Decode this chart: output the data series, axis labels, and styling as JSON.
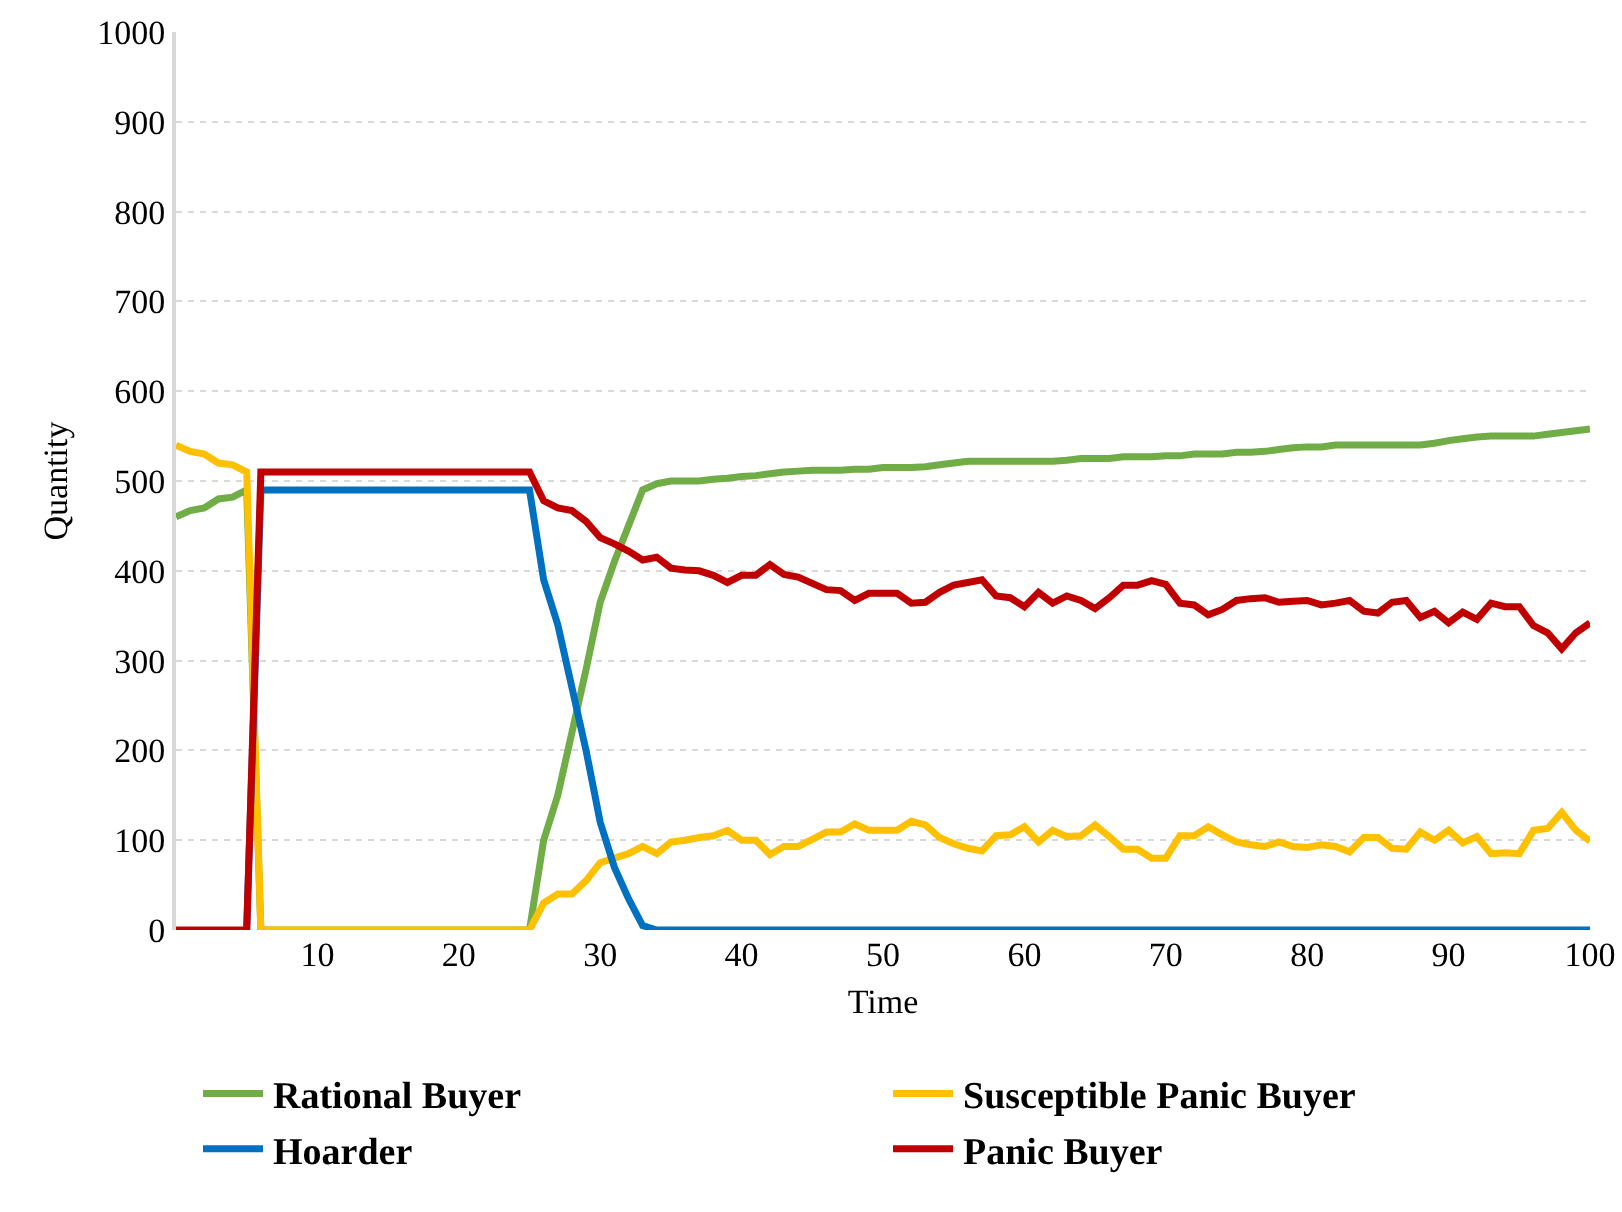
{
  "chart_data": {
    "type": "line",
    "xlabel": "Time",
    "ylabel": "Quantity",
    "x": [
      0,
      1,
      2,
      3,
      4,
      5,
      6,
      7,
      8,
      9,
      10,
      11,
      12,
      13,
      14,
      15,
      16,
      17,
      18,
      19,
      20,
      21,
      22,
      23,
      24,
      25,
      26,
      27,
      28,
      29,
      30,
      31,
      32,
      33,
      34,
      35,
      36,
      37,
      38,
      39,
      40,
      41,
      42,
      43,
      44,
      45,
      46,
      47,
      48,
      49,
      50,
      51,
      52,
      53,
      54,
      55,
      56,
      57,
      58,
      59,
      60,
      61,
      62,
      63,
      64,
      65,
      66,
      67,
      68,
      69,
      70,
      71,
      72,
      73,
      74,
      75,
      76,
      77,
      78,
      79,
      80,
      81,
      82,
      83,
      84,
      85,
      86,
      87,
      88,
      89,
      90,
      91,
      92,
      93,
      94,
      95,
      96,
      97,
      98,
      99,
      100
    ],
    "series": [
      {
        "name": "Rational Buyer",
        "color": "#70ad47",
        "values": [
          460,
          467,
          470,
          480,
          482,
          490,
          0,
          0,
          0,
          0,
          0,
          0,
          0,
          0,
          0,
          0,
          0,
          0,
          0,
          0,
          0,
          0,
          0,
          0,
          0,
          0,
          100,
          150,
          220,
          290,
          365,
          410,
          450,
          490,
          497,
          500,
          500,
          500,
          502,
          503,
          505,
          506,
          508,
          510,
          511,
          512,
          512,
          512,
          513,
          513,
          515,
          515,
          515,
          516,
          518,
          520,
          522,
          522,
          522,
          522,
          522,
          522,
          522,
          523,
          525,
          525,
          525,
          527,
          527,
          527,
          528,
          528,
          530,
          530,
          530,
          532,
          532,
          533,
          535,
          537,
          538,
          538,
          540,
          540,
          540,
          540,
          540,
          540,
          540,
          542,
          545,
          547,
          549,
          550,
          550,
          550,
          550,
          552,
          554,
          556,
          558
        ]
      },
      {
        "name": "Susceptible Panic Buyer",
        "color": "#ffc000",
        "values": [
          540,
          533,
          530,
          520,
          518,
          510,
          0,
          0,
          0,
          0,
          0,
          0,
          0,
          0,
          0,
          0,
          0,
          0,
          0,
          0,
          0,
          0,
          0,
          0,
          0,
          0,
          30,
          40,
          40,
          55,
          75,
          80,
          85,
          93,
          85,
          98,
          100,
          103,
          105,
          111,
          100,
          100,
          84,
          93,
          93,
          101,
          109,
          109,
          118,
          111,
          111,
          111,
          121,
          117,
          103,
          96,
          91,
          88,
          105,
          106,
          115,
          98,
          111,
          104,
          105,
          117,
          104,
          90,
          90,
          80,
          80,
          105,
          105,
          115,
          106,
          98,
          95,
          93,
          98,
          93,
          92,
          95,
          93,
          87,
          103,
          103,
          91,
          90,
          109,
          100,
          111,
          97,
          104,
          85,
          86,
          85,
          111,
          113,
          131,
          111,
          99
        ]
      },
      {
        "name": "Hoarder",
        "color": "#0070c0",
        "values": [
          null,
          null,
          null,
          null,
          null,
          0,
          490,
          490,
          490,
          490,
          490,
          490,
          490,
          490,
          490,
          490,
          490,
          490,
          490,
          490,
          490,
          490,
          490,
          490,
          490,
          490,
          390,
          340,
          270,
          200,
          120,
          70,
          35,
          5,
          0,
          0,
          0,
          0,
          0,
          0,
          0,
          0,
          0,
          0,
          0,
          0,
          0,
          0,
          0,
          0,
          0,
          0,
          0,
          0,
          0,
          0,
          0,
          0,
          0,
          0,
          0,
          0,
          0,
          0,
          0,
          0,
          0,
          0,
          0,
          0,
          0,
          0,
          0,
          0,
          0,
          0,
          0,
          0,
          0,
          0,
          0,
          0,
          0,
          0,
          0,
          0,
          0,
          0,
          0,
          0,
          0,
          0,
          0,
          0,
          0,
          0,
          0,
          0,
          0,
          0,
          0
        ]
      },
      {
        "name": "Panic Buyer",
        "color": "#c00000",
        "values": [
          0,
          0,
          0,
          0,
          0,
          0,
          510,
          510,
          510,
          510,
          510,
          510,
          510,
          510,
          510,
          510,
          510,
          510,
          510,
          510,
          510,
          510,
          510,
          510,
          510,
          510,
          478,
          470,
          467,
          455,
          437,
          430,
          422,
          412,
          415,
          403,
          401,
          400,
          395,
          387,
          395,
          395,
          407,
          396,
          393,
          386,
          379,
          378,
          367,
          375,
          375,
          375,
          364,
          365,
          376,
          384,
          387,
          390,
          372,
          370,
          360,
          376,
          364,
          372,
          367,
          358,
          370,
          384,
          384,
          389,
          385,
          364,
          362,
          351,
          357,
          367,
          369,
          370,
          365,
          366,
          367,
          362,
          364,
          367,
          355,
          353,
          365,
          367,
          348,
          355,
          342,
          354,
          346,
          364,
          360,
          360,
          339,
          331,
          313,
          331,
          342
        ]
      }
    ],
    "xlim": [
      0,
      100
    ],
    "xticks": [
      10,
      20,
      30,
      40,
      50,
      60,
      70,
      80,
      90,
      100
    ],
    "ylim": [
      0,
      1000
    ],
    "yticks": [
      0,
      100,
      200,
      300,
      400,
      500,
      600,
      700,
      800,
      900,
      1000
    ],
    "grid": "y",
    "legend": "bottom",
    "marker": "none",
    "line_style": "solid"
  }
}
